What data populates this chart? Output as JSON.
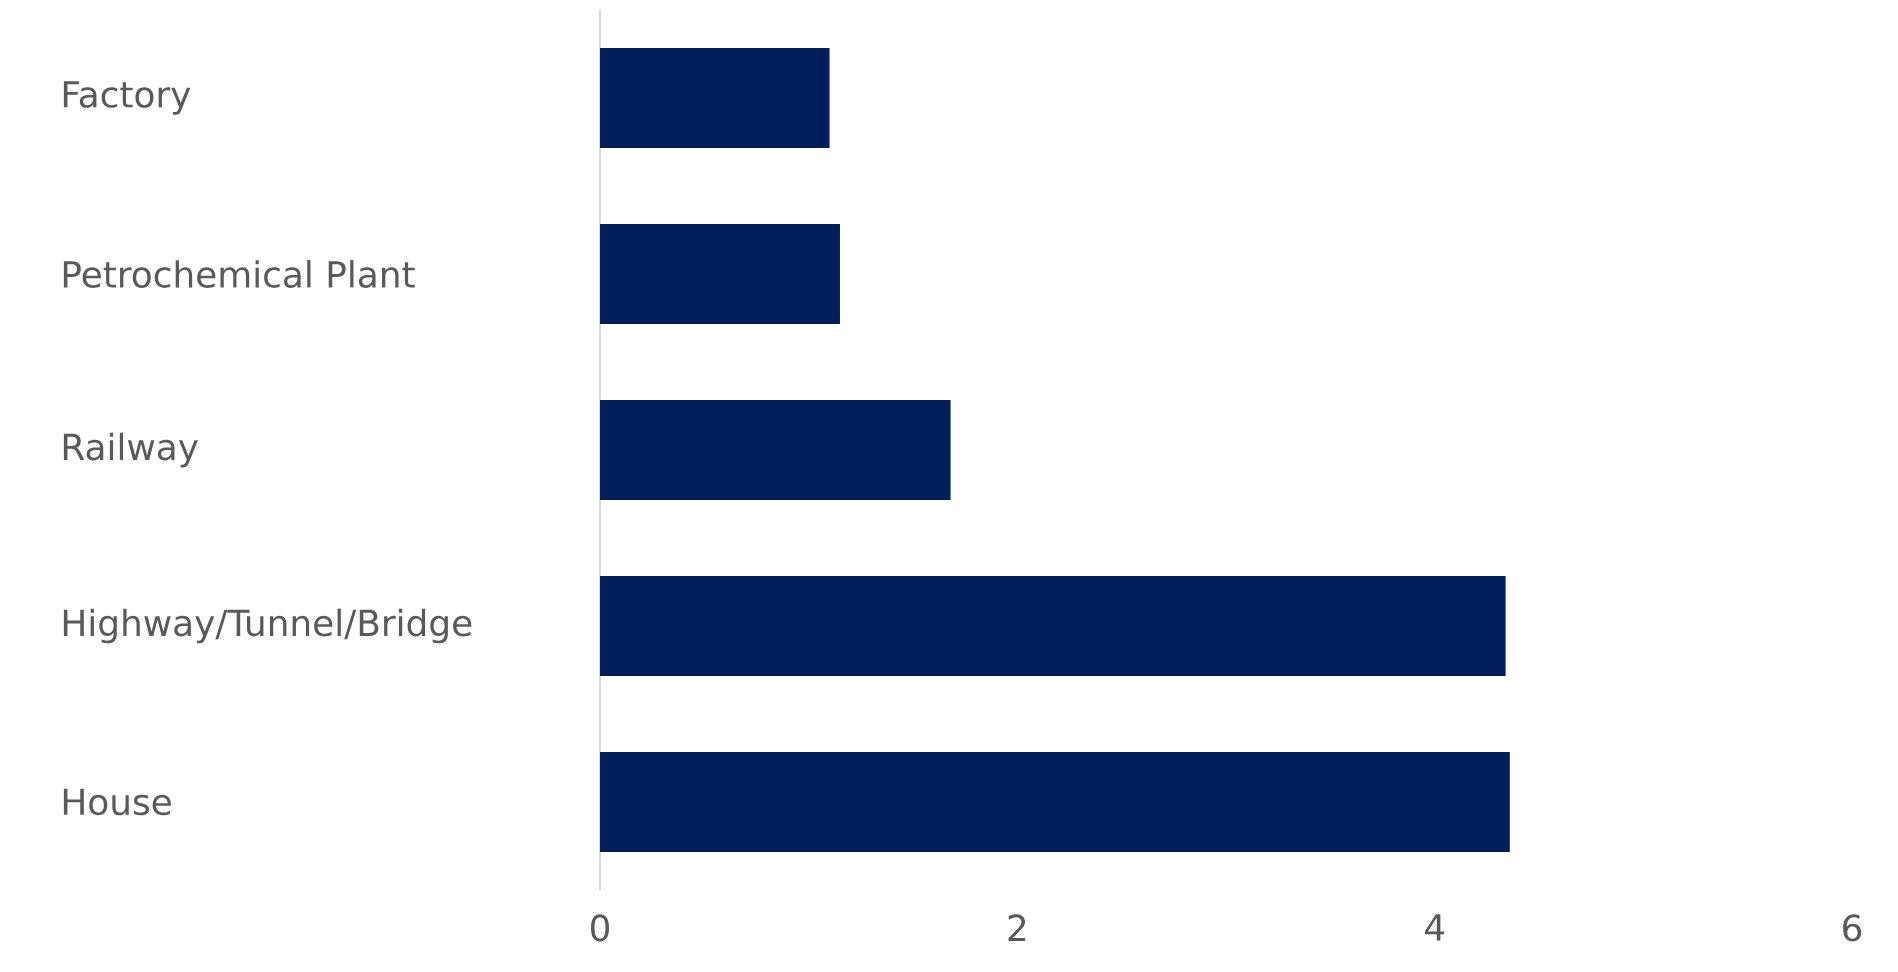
{
  "chart_data": {
    "type": "bar",
    "orientation": "horizontal",
    "categories": [
      "Factory",
      "Petrochemical Plant",
      "Railway",
      "Highway/Tunnel/Bridge",
      "House"
    ],
    "values": [
      1.1,
      1.15,
      1.68,
      4.34,
      4.36
    ],
    "color": "#001f5b",
    "xlim": [
      0,
      6
    ],
    "xticks": [
      0,
      2,
      4,
      6
    ],
    "grid": false
  }
}
